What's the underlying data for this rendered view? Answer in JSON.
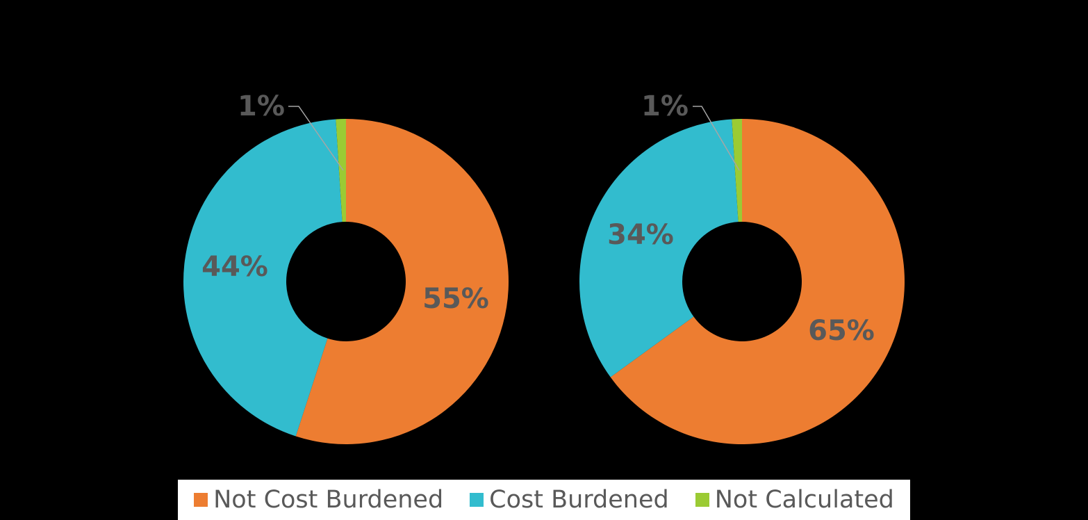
{
  "chart_data": [
    {
      "type": "pie",
      "categories": [
        "Not Cost Burdened",
        "Cost Burdened",
        "Not Calculated"
      ],
      "values": [
        55,
        44,
        1
      ],
      "labels": [
        "55%",
        "44%",
        "1%"
      ]
    },
    {
      "type": "pie",
      "categories": [
        "Not Cost Burdened",
        "Cost Burdened",
        "Not Calculated"
      ],
      "values": [
        65,
        34,
        1
      ],
      "labels": [
        "65%",
        "34%",
        "1%"
      ]
    }
  ],
  "colors": {
    "Not Cost Burdened": "#ED7D31",
    "Cost Burdened": "#32BCCE",
    "Not Calculated": "#9BCB34",
    "label_text": "#595959",
    "background": "#000000",
    "leader_line": "#A6A6A6"
  },
  "legend": {
    "items": [
      {
        "label": "Not Cost Burdened",
        "color": "#ED7D31"
      },
      {
        "label": "Cost Burdened",
        "color": "#32BCCE"
      },
      {
        "label": "Not Calculated",
        "color": "#9BCB34"
      }
    ]
  }
}
